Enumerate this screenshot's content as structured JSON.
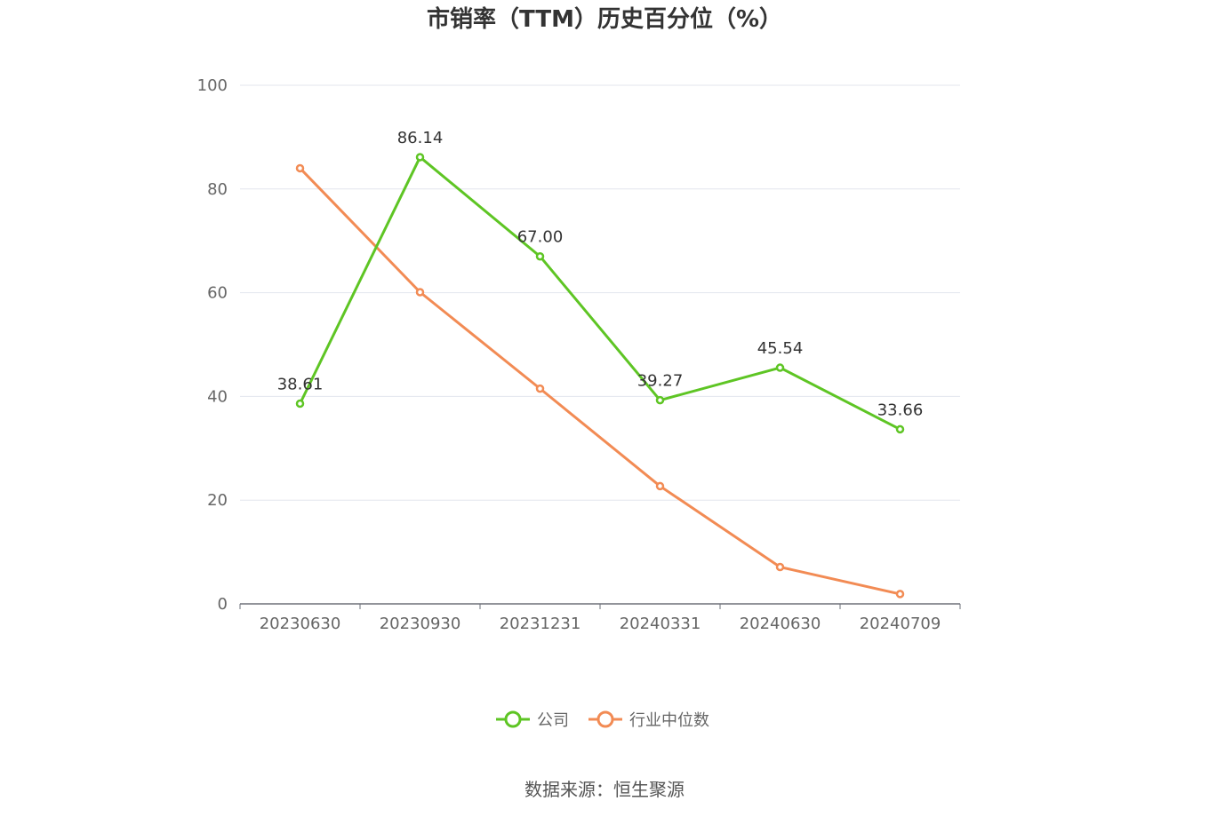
{
  "chart_data": {
    "type": "line",
    "title": "市销率（TTM）历史百分位（%）",
    "categories": [
      "20230630",
      "20230930",
      "20231231",
      "20240331",
      "20240630",
      "20240709"
    ],
    "ylim": [
      0,
      100
    ],
    "yticks": [
      0,
      20,
      40,
      60,
      80,
      100
    ],
    "grid": true,
    "legend_position": "bottom",
    "series": [
      {
        "name": "公司",
        "color": "#5ec524",
        "values": [
          38.61,
          86.14,
          67.0,
          39.27,
          45.54,
          33.66
        ],
        "labels": [
          "38.61",
          "86.14",
          "67.00",
          "39.27",
          "45.54",
          "33.66"
        ]
      },
      {
        "name": "行业中位数",
        "color": "#f28b54",
        "values": [
          84.0,
          60.1,
          41.5,
          22.7,
          7.1,
          1.9
        ]
      }
    ],
    "source": "数据来源：恒生聚源"
  }
}
